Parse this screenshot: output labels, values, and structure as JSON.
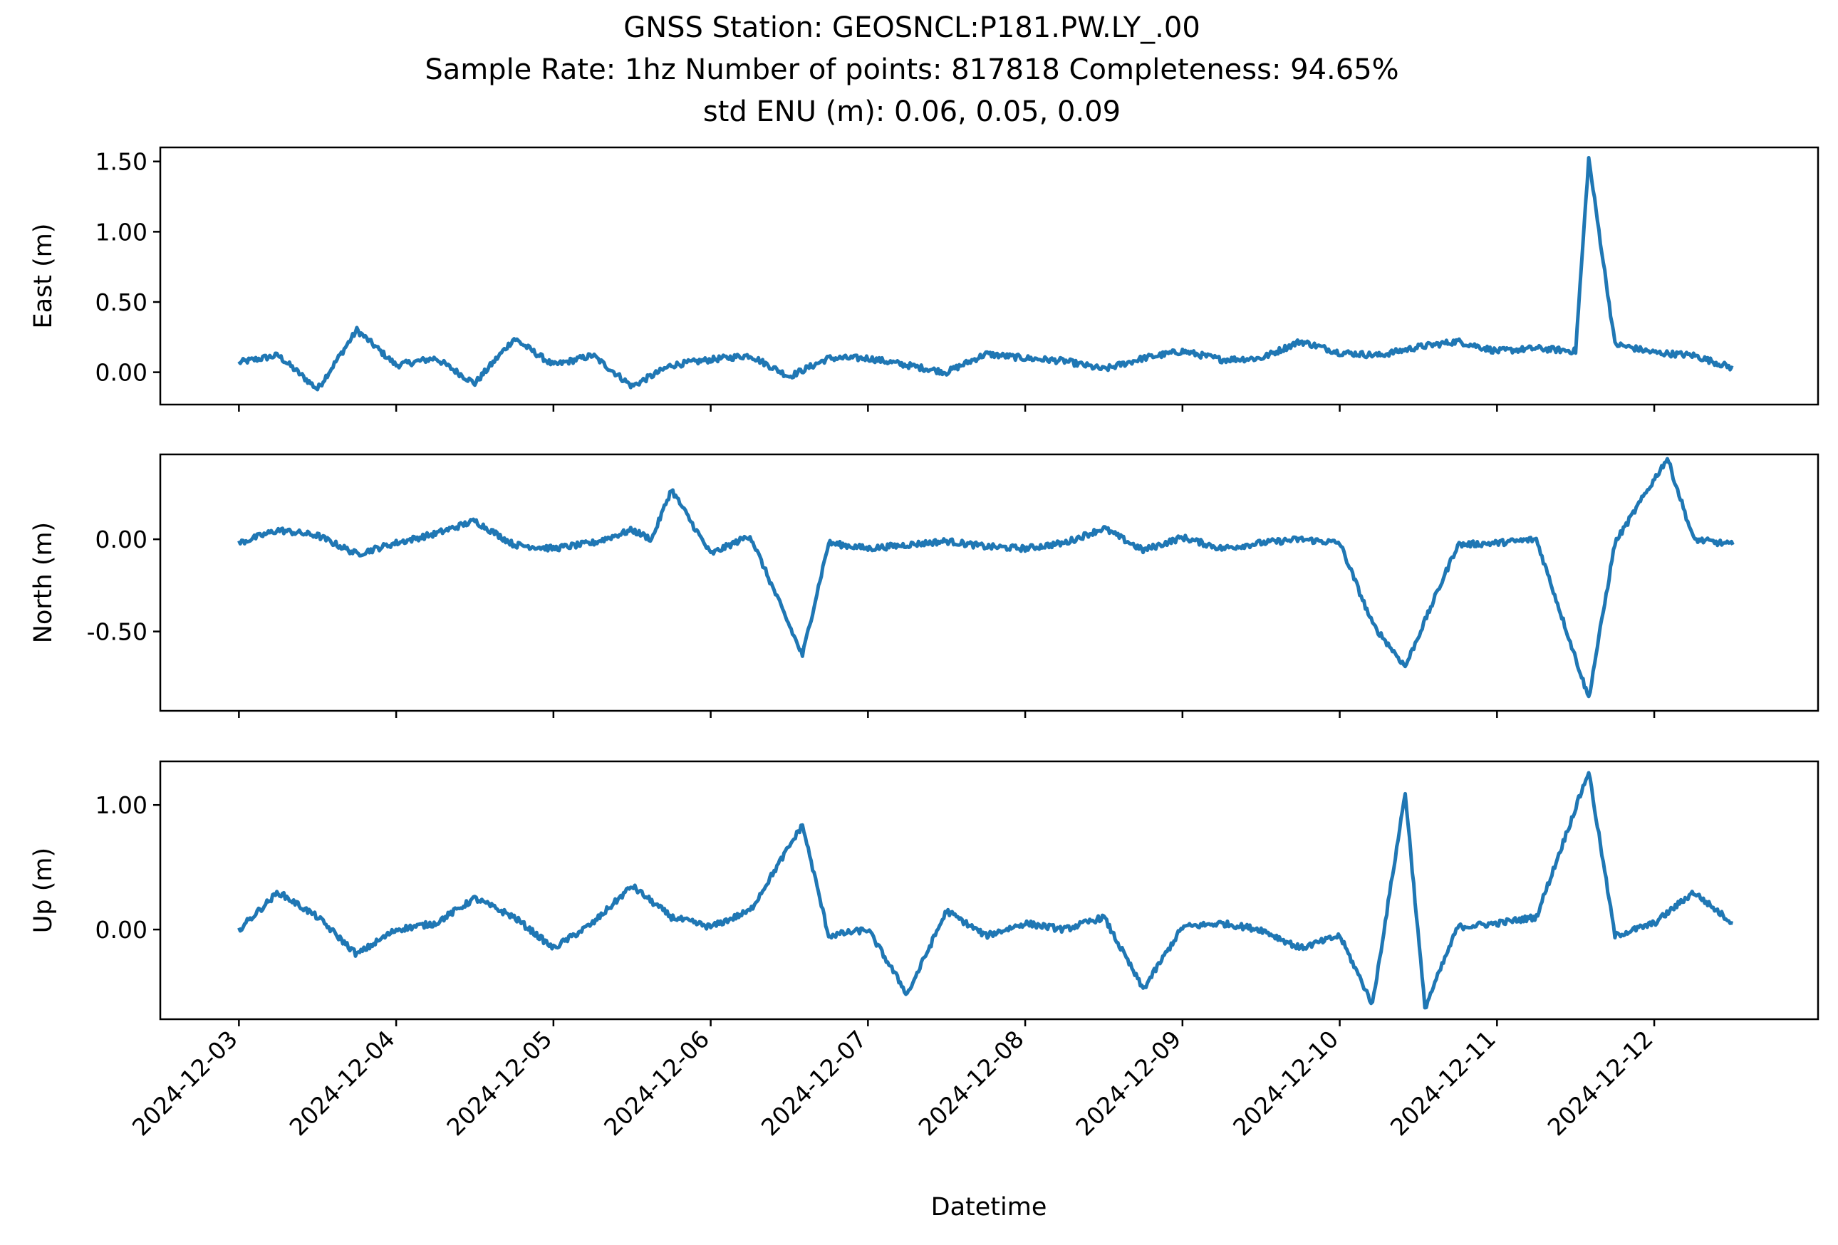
{
  "title_lines": [
    "GNSS Station: GEOSNCL:P181.PW.LY_.00",
    "Sample Rate: 1hz   Number of points: 817818    Completeness:  94.65%",
    "std ENU (m):  0.06, 0.05, 0.09"
  ],
  "chart_data": {
    "type": "line",
    "xlabel": "Datetime",
    "x_tick_labels": [
      "2024-12-03",
      "2024-12-04",
      "2024-12-05",
      "2024-12-06",
      "2024-12-07",
      "2024-12-08",
      "2024-12-09",
      "2024-12-10",
      "2024-12-11",
      "2024-12-12"
    ],
    "xlim": [
      "2024-12-02T12:00",
      "2024-12-13T01:00"
    ],
    "x_range_of_data": [
      "2024-12-03T00:00",
      "2024-12-12T12:00"
    ],
    "line_color": "#1f77b4",
    "panels": [
      {
        "ylabel": "East (m)",
        "ylim": [
          -0.23,
          1.6
        ],
        "y_ticks": [
          0.0,
          0.5,
          1.0,
          1.5
        ],
        "y_tick_labels": [
          "0.00",
          "0.50",
          "1.00",
          "1.50"
        ],
        "x": [
          "2024-12-03T00:00",
          "2024-12-03T06:00",
          "2024-12-03T12:00",
          "2024-12-03T18:00",
          "2024-12-04T00:00",
          "2024-12-04T06:00",
          "2024-12-04T12:00",
          "2024-12-04T18:00",
          "2024-12-05T00:00",
          "2024-12-05T06:00",
          "2024-12-05T12:00",
          "2024-12-05T18:00",
          "2024-12-06T00:00",
          "2024-12-06T06:00",
          "2024-12-06T12:00",
          "2024-12-06T18:00",
          "2024-12-07T00:00",
          "2024-12-07T06:00",
          "2024-12-07T12:00",
          "2024-12-07T18:00",
          "2024-12-08T00:00",
          "2024-12-08T06:00",
          "2024-12-08T12:00",
          "2024-12-08T18:00",
          "2024-12-09T00:00",
          "2024-12-09T06:00",
          "2024-12-09T12:00",
          "2024-12-09T18:00",
          "2024-12-10T00:00",
          "2024-12-10T06:00",
          "2024-12-10T12:00",
          "2024-12-10T18:00",
          "2024-12-11T00:00",
          "2024-12-11T06:00",
          "2024-12-11T12:00",
          "2024-12-11T14:00",
          "2024-12-11T18:00",
          "2024-12-12T00:00",
          "2024-12-12T06:00",
          "2024-12-12T12:00"
        ],
        "y": [
          0.07,
          0.12,
          -0.12,
          0.3,
          0.05,
          0.1,
          -0.08,
          0.24,
          0.05,
          0.12,
          -0.1,
          0.05,
          0.09,
          0.12,
          -0.03,
          0.1,
          0.1,
          0.05,
          0.0,
          0.13,
          0.1,
          0.08,
          0.02,
          0.1,
          0.15,
          0.09,
          0.1,
          0.22,
          0.14,
          0.12,
          0.18,
          0.22,
          0.15,
          0.17,
          0.15,
          1.52,
          0.2,
          0.14,
          0.12,
          0.03
        ]
      },
      {
        "ylabel": "North (m)",
        "ylim": [
          -0.93,
          0.46
        ],
        "y_ticks": [
          -0.5,
          0.0
        ],
        "y_tick_labels": [
          "-0.50",
          "0.00"
        ],
        "x": [
          "2024-12-03T00:00",
          "2024-12-03T06:00",
          "2024-12-03T12:00",
          "2024-12-03T18:00",
          "2024-12-04T00:00",
          "2024-12-04T06:00",
          "2024-12-04T12:00",
          "2024-12-04T18:00",
          "2024-12-05T00:00",
          "2024-12-05T06:00",
          "2024-12-05T12:00",
          "2024-12-05T15:00",
          "2024-12-05T18:00",
          "2024-12-06T00:00",
          "2024-12-06T06:00",
          "2024-12-06T14:00",
          "2024-12-06T18:00",
          "2024-12-07T00:00",
          "2024-12-07T06:00",
          "2024-12-07T12:00",
          "2024-12-07T18:00",
          "2024-12-08T00:00",
          "2024-12-08T06:00",
          "2024-12-08T12:00",
          "2024-12-08T18:00",
          "2024-12-09T00:00",
          "2024-12-09T06:00",
          "2024-12-09T12:00",
          "2024-12-09T18:00",
          "2024-12-10T00:00",
          "2024-12-10T05:00",
          "2024-12-10T10:00",
          "2024-12-10T18:00",
          "2024-12-11T00:00",
          "2024-12-11T06:00",
          "2024-12-11T14:00",
          "2024-12-11T18:00",
          "2024-12-12T02:00",
          "2024-12-12T06:00",
          "2024-12-12T12:00"
        ],
        "y": [
          -0.02,
          0.05,
          0.02,
          -0.08,
          -0.02,
          0.03,
          0.1,
          -0.03,
          -0.05,
          -0.02,
          0.05,
          0.0,
          0.27,
          -0.08,
          0.02,
          -0.63,
          -0.02,
          -0.05,
          -0.03,
          -0.01,
          -0.04,
          -0.05,
          -0.02,
          0.06,
          -0.06,
          0.01,
          -0.05,
          -0.02,
          0.0,
          -0.02,
          -0.46,
          -0.69,
          -0.03,
          -0.02,
          0.0,
          -0.86,
          -0.02,
          0.44,
          0.0,
          -0.03
        ]
      },
      {
        "ylabel": "Up (m)",
        "ylim": [
          -0.72,
          1.35
        ],
        "y_ticks": [
          0.0,
          1.0
        ],
        "y_tick_labels": [
          "0.00",
          "1.00"
        ],
        "x": [
          "2024-12-03T00:00",
          "2024-12-03T06:00",
          "2024-12-03T12:00",
          "2024-12-03T18:00",
          "2024-12-04T00:00",
          "2024-12-04T06:00",
          "2024-12-04T12:00",
          "2024-12-04T18:00",
          "2024-12-05T00:00",
          "2024-12-05T06:00",
          "2024-12-05T12:00",
          "2024-12-05T18:00",
          "2024-12-06T00:00",
          "2024-12-06T06:00",
          "2024-12-06T14:00",
          "2024-12-06T18:00",
          "2024-12-07T00:00",
          "2024-12-07T06:00",
          "2024-12-07T12:00",
          "2024-12-07T18:00",
          "2024-12-08T00:00",
          "2024-12-08T06:00",
          "2024-12-08T12:00",
          "2024-12-08T18:00",
          "2024-12-09T00:00",
          "2024-12-09T06:00",
          "2024-12-09T12:00",
          "2024-12-09T18:00",
          "2024-12-10T00:00",
          "2024-12-10T05:00",
          "2024-12-10T10:00",
          "2024-12-10T13:00",
          "2024-12-10T18:00",
          "2024-12-11T00:00",
          "2024-12-11T06:00",
          "2024-12-11T14:00",
          "2024-12-11T18:00",
          "2024-12-12T00:00",
          "2024-12-12T06:00",
          "2024-12-12T12:00"
        ],
        "y": [
          0.0,
          0.3,
          0.1,
          -0.2,
          0.0,
          0.05,
          0.25,
          0.1,
          -0.15,
          0.05,
          0.35,
          0.1,
          0.02,
          0.15,
          0.84,
          -0.05,
          0.0,
          -0.52,
          0.15,
          -0.05,
          0.05,
          0.0,
          0.1,
          -0.48,
          0.02,
          0.05,
          0.0,
          -0.15,
          -0.05,
          -0.6,
          1.1,
          -0.63,
          0.02,
          0.05,
          0.1,
          1.27,
          -0.05,
          0.05,
          0.3,
          0.05
        ]
      }
    ]
  }
}
